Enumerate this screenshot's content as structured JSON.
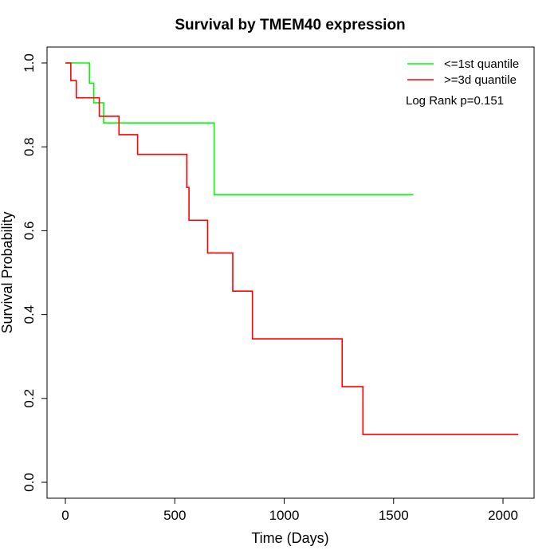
{
  "chart_data": {
    "type": "line",
    "title": "Survival by TMEM40 expression",
    "xlabel": "Time (Days)",
    "ylabel": "Survival Probability",
    "xlim": [
      0,
      2150
    ],
    "ylim": [
      0,
      1.0
    ],
    "x_ticks": [
      0,
      500,
      1000,
      1500,
      2000
    ],
    "x_tick_labels": [
      "0",
      "500",
      "1000",
      "1500",
      "2000"
    ],
    "y_ticks": [
      0.0,
      0.2,
      0.4,
      0.6,
      0.8,
      1.0
    ],
    "y_tick_labels": [
      "0.0",
      "0.2",
      "0.4",
      "0.6",
      "0.8",
      "1.0"
    ],
    "grid": false,
    "legend_position": "top-right",
    "annotation": "Log Rank p=0.151",
    "series": [
      {
        "name": "<=1st quantile",
        "color": "#00ff00",
        "step": true,
        "x": [
          0,
          110,
          130,
          175,
          680,
          1590
        ],
        "y": [
          1.0,
          0.952,
          0.905,
          0.857,
          0.686,
          0.686
        ]
      },
      {
        "name": ">=3d quantile",
        "color": "#ff0000",
        "step": true,
        "x": [
          0,
          25,
          50,
          155,
          245,
          330,
          555,
          565,
          650,
          765,
          855,
          1265,
          1360,
          2070
        ],
        "y": [
          1.0,
          0.958,
          0.917,
          0.873,
          0.829,
          0.782,
          0.703,
          0.625,
          0.547,
          0.456,
          0.342,
          0.228,
          0.114,
          0.114
        ]
      }
    ]
  }
}
